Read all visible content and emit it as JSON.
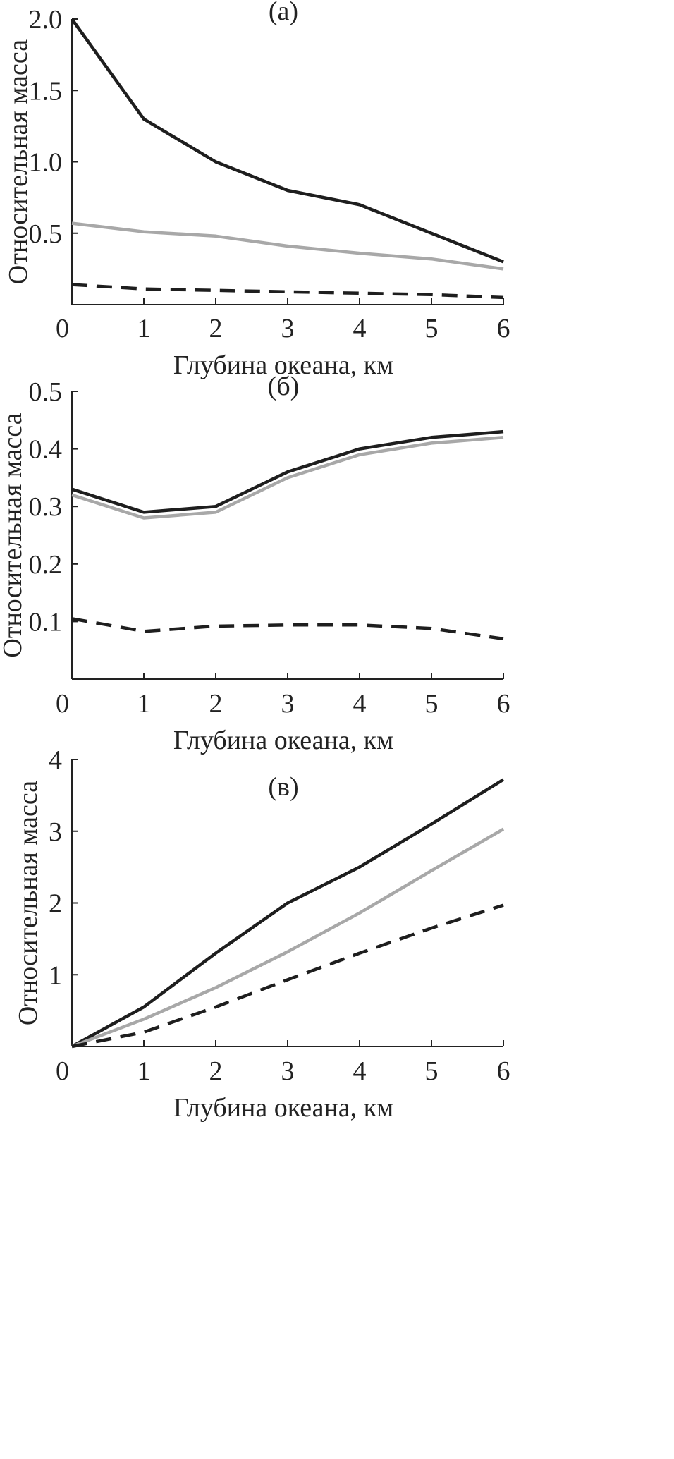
{
  "chart_data": [
    {
      "type": "line",
      "title": "(а)",
      "xlabel": "Глубина океана, км",
      "ylabel": "Относительная масса",
      "xlim": [
        0,
        6
      ],
      "ylim": [
        0,
        2.0
      ],
      "x_ticks": [
        "0",
        "1",
        "2",
        "3",
        "4",
        "5",
        "6"
      ],
      "y_ticks": [
        {
          "value": 0.5,
          "label": "0.5"
        },
        {
          "value": 1.0,
          "label": "1.0"
        },
        {
          "value": 1.5,
          "label": "1.5"
        },
        {
          "value": 2.0,
          "label": "2.0"
        }
      ],
      "x": [
        0,
        1,
        2,
        3,
        4,
        5,
        6
      ],
      "series": [
        {
          "color": "#1e1e1e",
          "style": "solid",
          "values": [
            2.0,
            1.3,
            1.0,
            0.8,
            0.7,
            0.5,
            0.3
          ]
        },
        {
          "color": "#a8a8a8",
          "style": "solid",
          "values": [
            0.57,
            0.51,
            0.48,
            0.41,
            0.36,
            0.32,
            0.25
          ]
        },
        {
          "color": "#1e1e1e",
          "style": "dashed",
          "values": [
            0.14,
            0.11,
            0.1,
            0.09,
            0.08,
            0.07,
            0.05
          ]
        }
      ]
    },
    {
      "type": "line",
      "title": "(б)",
      "xlabel": "Глубина океана, км",
      "ylabel": "Относительная масса",
      "xlim": [
        0,
        6
      ],
      "ylim": [
        0,
        0.5
      ],
      "x_ticks": [
        "0",
        "1",
        "2",
        "3",
        "4",
        "5",
        "6"
      ],
      "y_ticks": [
        {
          "value": 0.1,
          "label": "0.1"
        },
        {
          "value": 0.2,
          "label": "0.2"
        },
        {
          "value": 0.3,
          "label": "0.3"
        },
        {
          "value": 0.4,
          "label": "0.4"
        },
        {
          "value": 0.5,
          "label": "0.5"
        }
      ],
      "x": [
        0,
        1,
        2,
        3,
        4,
        5,
        6
      ],
      "series": [
        {
          "color": "#1e1e1e",
          "style": "solid",
          "values": [
            0.33,
            0.29,
            0.3,
            0.36,
            0.4,
            0.42,
            0.43
          ]
        },
        {
          "color": "#a8a8a8",
          "style": "solid",
          "values": [
            0.32,
            0.28,
            0.29,
            0.35,
            0.39,
            0.41,
            0.42
          ]
        },
        {
          "color": "#1e1e1e",
          "style": "dashed",
          "values": [
            0.105,
            0.083,
            0.092,
            0.094,
            0.094,
            0.088,
            0.07
          ]
        }
      ]
    },
    {
      "type": "line",
      "title": "(в)",
      "xlabel": "Глубина океана, км",
      "ylabel": "Относительная масса",
      "xlim": [
        0,
        6
      ],
      "ylim": [
        0,
        4
      ],
      "x_ticks": [
        "0",
        "1",
        "2",
        "3",
        "4",
        "5",
        "6"
      ],
      "y_ticks": [
        {
          "value": 1,
          "label": "1"
        },
        {
          "value": 2,
          "label": "2"
        },
        {
          "value": 3,
          "label": "3"
        },
        {
          "value": 4,
          "label": "4"
        }
      ],
      "x": [
        0,
        1,
        2,
        3,
        4,
        5,
        6
      ],
      "series": [
        {
          "color": "#1e1e1e",
          "style": "solid",
          "values": [
            0,
            0.55,
            1.3,
            2.0,
            2.5,
            3.1,
            3.72
          ]
        },
        {
          "color": "#a8a8a8",
          "style": "solid",
          "values": [
            0,
            0.38,
            0.82,
            1.32,
            1.86,
            2.45,
            3.03
          ]
        },
        {
          "color": "#1e1e1e",
          "style": "dashed",
          "values": [
            0,
            0.2,
            0.55,
            0.93,
            1.3,
            1.65,
            1.97
          ]
        }
      ]
    }
  ]
}
